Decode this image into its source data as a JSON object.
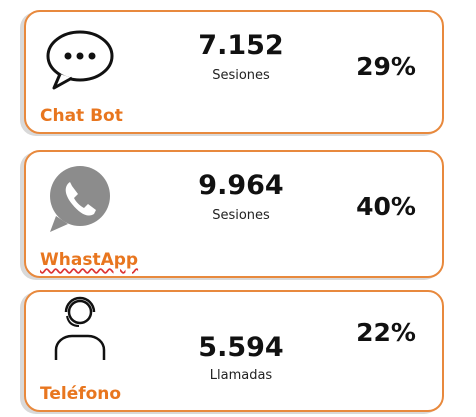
{
  "cards": [
    {
      "label": "Chat Bot",
      "value": "7.152",
      "unit": "Sesiones",
      "percent": "29%"
    },
    {
      "label": "WhastApp",
      "value": "9.964",
      "unit": "Sesiones",
      "percent": "40%"
    },
    {
      "label": "Teléfono",
      "value": "5.594",
      "unit": "Llamadas",
      "percent": "22%"
    }
  ]
}
